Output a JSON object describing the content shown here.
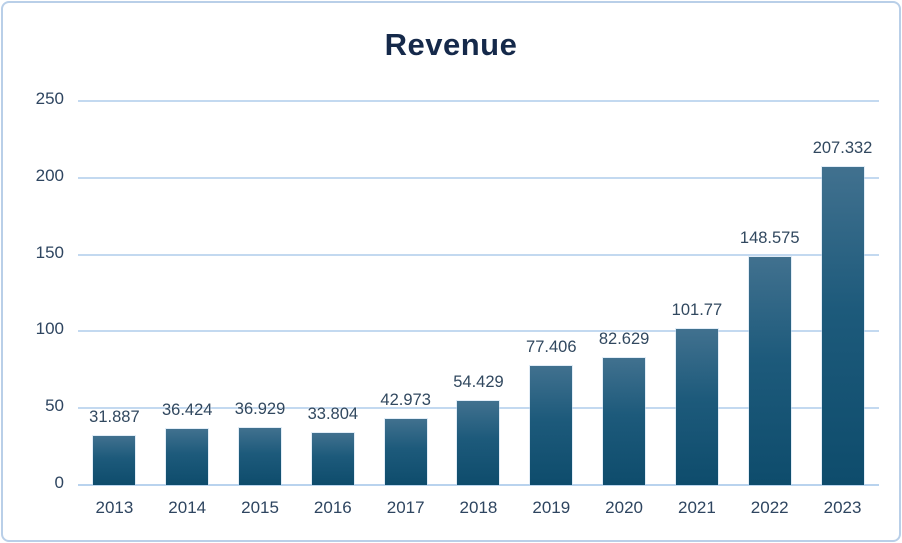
{
  "chart_data": {
    "type": "bar",
    "title": "Revenue",
    "categories": [
      "2013",
      "2014",
      "2015",
      "2016",
      "2017",
      "2018",
      "2019",
      "2020",
      "2021",
      "2022",
      "2023"
    ],
    "values": [
      31.887,
      36.424,
      36.929,
      33.804,
      42.973,
      54.429,
      77.406,
      82.629,
      101.77,
      148.575,
      207.332
    ],
    "value_labels": [
      "31.887",
      "36.424",
      "36.929",
      "33.804",
      "42.973",
      "54.429",
      "77.406",
      "82.629",
      "101.77",
      "148.575",
      "207.332"
    ],
    "xlabel": "",
    "ylabel": "",
    "ylim": [
      0,
      250
    ],
    "yticks": [
      0,
      50,
      100,
      150,
      200,
      250
    ],
    "grid": true,
    "legend": false,
    "colors": {
      "bar_gradient_top": "#41718f",
      "bar_gradient_bottom": "#0e4c6c",
      "gridline": "#c3d9f0",
      "axis_text": "#2e4560",
      "data_label_text": "#31485f",
      "title_text": "#15294a",
      "card_border": "#b9cfe8",
      "background": "#ffffff"
    }
  }
}
